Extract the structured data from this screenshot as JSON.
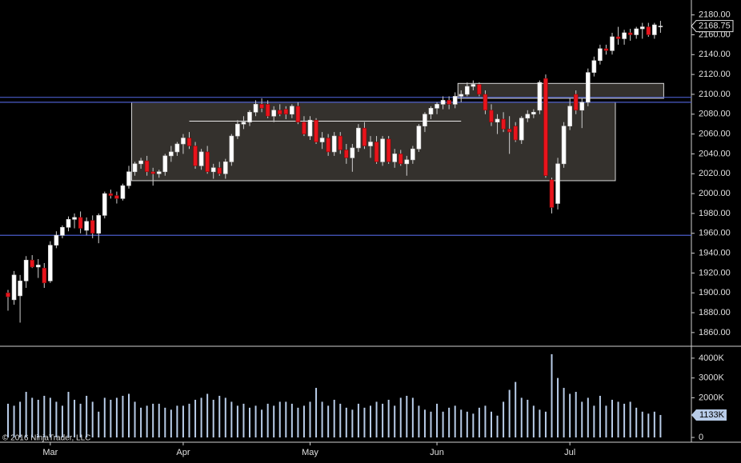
{
  "chart_data": {
    "type": "candlestick",
    "copyright": "© 2016 NinjaTrader, LLC",
    "categories": [
      null,
      null,
      null,
      null,
      null,
      null,
      null,
      "Mar",
      null,
      null,
      null,
      null,
      null,
      null,
      null,
      null,
      null,
      null,
      null,
      null,
      null,
      null,
      null,
      null,
      null,
      null,
      null,
      null,
      null,
      "Apr",
      null,
      null,
      null,
      null,
      null,
      null,
      null,
      null,
      null,
      null,
      null,
      null,
      null,
      null,
      null,
      null,
      null,
      null,
      null,
      null,
      "May",
      null,
      null,
      null,
      null,
      null,
      null,
      null,
      null,
      null,
      null,
      null,
      null,
      null,
      null,
      null,
      null,
      null,
      null,
      null,
      null,
      "Jun",
      null,
      null,
      null,
      null,
      null,
      null,
      null,
      null,
      null,
      null,
      null,
      null,
      null,
      null,
      null,
      null,
      null,
      null,
      null,
      null,
      null,
      "Jul",
      null,
      null,
      null,
      null,
      null,
      null,
      null,
      null,
      null,
      null,
      null,
      null,
      null,
      null,
      null
    ],
    "open": [
      1900,
      1893,
      1897,
      1912,
      1933,
      1926,
      1925,
      1912,
      1948,
      1958,
      1966,
      1974,
      1976,
      1963,
      1973,
      1960,
      1978,
      2000,
      1998,
      1995,
      2008,
      2022,
      2030,
      2033,
      2022,
      2020,
      2022,
      2038,
      2042,
      2050,
      2056,
      2048,
      2028,
      2042,
      2022,
      2026,
      2020,
      2032,
      2058,
      2070,
      2072,
      2082,
      2090,
      2090,
      2078,
      2084,
      2085,
      2080,
      2088,
      2072,
      2058,
      2074,
      2052,
      2056,
      2042,
      2058,
      2044,
      2036,
      2046,
      2066,
      2048,
      2052,
      2032,
      2055,
      2032,
      2040,
      2030,
      2034,
      2045,
      2068,
      2080,
      2086,
      2090,
      2094,
      2090,
      2098,
      2100,
      2108,
      2110,
      2100,
      2084,
      2072,
      2075,
      2065,
      2068,
      2054,
      2076,
      2080,
      2084,
      2116,
      2014,
      1990,
      2030,
      2068,
      2100,
      2084,
      2092,
      2122,
      2134,
      2146,
      2144,
      2158,
      2156,
      2162,
      2160,
      2166,
      2168,
      2160,
      2168
    ],
    "high": [
      1903,
      1922,
      1918,
      1937,
      1938,
      1934,
      1930,
      1952,
      1962,
      1968,
      1977,
      1980,
      1982,
      1976,
      1978,
      1980,
      2002,
      2004,
      2002,
      2010,
      2028,
      2032,
      2036,
      2038,
      2026,
      2024,
      2040,
      2048,
      2052,
      2060,
      2062,
      2052,
      2045,
      2048,
      2030,
      2032,
      2035,
      2060,
      2074,
      2078,
      2084,
      2094,
      2096,
      2094,
      2088,
      2090,
      2088,
      2090,
      2092,
      2078,
      2078,
      2076,
      2062,
      2060,
      2062,
      2062,
      2050,
      2050,
      2070,
      2072,
      2058,
      2058,
      2058,
      2058,
      2045,
      2044,
      2038,
      2048,
      2070,
      2082,
      2088,
      2092,
      2098,
      2098,
      2102,
      2104,
      2112,
      2114,
      2112,
      2104,
      2090,
      2080,
      2082,
      2078,
      2072,
      2078,
      2084,
      2085,
      2114,
      2120,
      2016,
      2036,
      2072,
      2096,
      2104,
      2096,
      2126,
      2138,
      2150,
      2150,
      2162,
      2168,
      2165,
      2166,
      2168,
      2172,
      2172,
      2172,
      2174
    ],
    "low": [
      1882,
      1888,
      1870,
      1905,
      1925,
      1915,
      1905,
      1910,
      1945,
      1955,
      1962,
      1965,
      1960,
      1958,
      1955,
      1950,
      1975,
      1995,
      1990,
      1993,
      2005,
      2018,
      2025,
      2018,
      2008,
      2016,
      2018,
      2032,
      2038,
      2040,
      2045,
      2025,
      2024,
      2020,
      2015,
      2018,
      2015,
      2028,
      2055,
      2065,
      2068,
      2078,
      2082,
      2076,
      2072,
      2078,
      2075,
      2076,
      2070,
      2058,
      2054,
      2050,
      2045,
      2038,
      2038,
      2040,
      2030,
      2022,
      2042,
      2045,
      2036,
      2030,
      2028,
      2030,
      2026,
      2028,
      2018,
      2030,
      2042,
      2062,
      2075,
      2080,
      2085,
      2085,
      2086,
      2092,
      2098,
      2104,
      2098,
      2080,
      2068,
      2060,
      2062,
      2040,
      2052,
      2050,
      2072,
      2076,
      2080,
      2016,
      1980,
      1984,
      2026,
      2064,
      2080,
      2066,
      2088,
      2118,
      2130,
      2140,
      2140,
      2150,
      2150,
      2154,
      2156,
      2156,
      2158,
      2156,
      2162
    ],
    "close": [
      1896,
      1918,
      1912,
      1933,
      1926,
      1928,
      1910,
      1948,
      1958,
      1966,
      1974,
      1976,
      1965,
      1972,
      1960,
      1978,
      2000,
      1998,
      1995,
      2008,
      2022,
      2030,
      2033,
      2022,
      2020,
      2022,
      2038,
      2042,
      2050,
      2056,
      2048,
      2028,
      2042,
      2022,
      2026,
      2020,
      2032,
      2058,
      2070,
      2072,
      2082,
      2090,
      2086,
      2078,
      2084,
      2080,
      2080,
      2088,
      2072,
      2060,
      2074,
      2052,
      2056,
      2042,
      2058,
      2044,
      2036,
      2046,
      2066,
      2048,
      2052,
      2032,
      2055,
      2032,
      2040,
      2030,
      2034,
      2045,
      2068,
      2080,
      2086,
      2090,
      2094,
      2090,
      2098,
      2100,
      2108,
      2110,
      2100,
      2084,
      2072,
      2075,
      2065,
      2062,
      2054,
      2076,
      2080,
      2082,
      2112,
      2018,
      1986,
      2030,
      2068,
      2088,
      2084,
      2092,
      2122,
      2134,
      2146,
      2144,
      2158,
      2156,
      2162,
      2160,
      2166,
      2168,
      2160,
      2170,
      2168.75
    ],
    "up_color": "#ffffff",
    "down_color": "#e8141c",
    "ylim": [
      1847,
      2191
    ],
    "yticks": [
      {
        "value": 1860,
        "label": "1860.00"
      },
      {
        "value": 1880,
        "label": "1880.00"
      },
      {
        "value": 1900,
        "label": "1900.00"
      },
      {
        "value": 1920,
        "label": "1920.00"
      },
      {
        "value": 1940,
        "label": "1940.00"
      },
      {
        "value": 1960,
        "label": "1960.00"
      },
      {
        "value": 1980,
        "label": "1980.00"
      },
      {
        "value": 2000,
        "label": "2000.00"
      },
      {
        "value": 2020,
        "label": "2020.00"
      },
      {
        "value": 2040,
        "label": "2040.00"
      },
      {
        "value": 2060,
        "label": "2060.00"
      },
      {
        "value": 2080,
        "label": "2080.00"
      },
      {
        "value": 2100,
        "label": "2100.00"
      },
      {
        "value": 2120,
        "label": "2120.00"
      },
      {
        "value": 2140,
        "label": "2140.00"
      },
      {
        "value": 2160,
        "label": "2160.00"
      },
      {
        "value": 2180,
        "label": "2180.00"
      }
    ],
    "hlines": [
      2097,
      2092,
      1958
    ],
    "hline_color": "#4a5cc8",
    "rectangles": [
      {
        "x": [
          21,
          100
        ],
        "y": [
          2013,
          2092
        ]
      },
      {
        "x": [
          75,
          108
        ],
        "y": [
          2096,
          2111
        ]
      }
    ],
    "segments": [
      {
        "x": [
          30,
          75
        ],
        "y": [
          2073,
          2073
        ]
      }
    ],
    "volume": {
      "color": "#b8cce8",
      "values": [
        1700,
        1600,
        1800,
        2300,
        2000,
        1900,
        2100,
        2000,
        1800,
        1600,
        2300,
        1900,
        1700,
        2100,
        1800,
        1300,
        2000,
        1900,
        2000,
        2100,
        2200,
        1800,
        1500,
        1600,
        1700,
        1700,
        1500,
        1400,
        1600,
        1600,
        1700,
        1900,
        2000,
        2200,
        1900,
        2100,
        2000,
        1800,
        1600,
        1700,
        1500,
        1600,
        1400,
        1700,
        1600,
        1800,
        1800,
        1700,
        1500,
        1600,
        1800,
        2500,
        1800,
        1600,
        1900,
        1700,
        1500,
        1400,
        1700,
        1500,
        1600,
        1800,
        1700,
        1900,
        1600,
        2000,
        2100,
        2000,
        1600,
        1400,
        1300,
        1700,
        1300,
        1500,
        1600,
        1400,
        1300,
        1200,
        1500,
        1600,
        1300,
        1100,
        1800,
        2400,
        2800,
        2000,
        1900,
        1600,
        1400,
        1300,
        4200,
        3000,
        2500,
        2200,
        2300,
        1800,
        2000,
        1600,
        2100,
        1600,
        1900,
        1800,
        1700,
        1800,
        1500,
        1300,
        1200,
        1300,
        1133
      ],
      "value_labels": [
        null,
        null,
        null,
        null,
        null,
        null,
        null,
        null,
        null,
        null,
        null,
        null,
        null,
        null,
        null,
        null,
        null,
        null,
        null,
        null,
        null,
        null,
        null,
        null,
        null,
        null,
        null,
        null,
        null,
        null,
        null,
        null,
        null,
        null,
        null,
        null,
        null,
        null,
        null,
        null,
        null,
        null,
        null,
        null,
        null,
        null,
        null,
        null,
        null,
        null,
        null,
        null,
        null,
        null,
        null,
        null,
        null,
        null,
        null,
        null,
        null,
        null,
        null,
        null,
        null,
        null,
        null,
        null,
        null,
        null,
        null,
        null,
        null,
        null,
        null,
        null,
        null,
        null,
        null,
        null,
        null,
        null,
        null,
        null,
        null,
        null,
        null,
        null,
        null,
        null,
        null,
        null,
        null,
        null,
        null,
        null,
        null,
        null,
        null,
        null,
        null,
        null,
        null,
        null,
        null,
        null,
        null,
        null,
        "1133K"
      ],
      "ylim": [
        -200,
        4560
      ],
      "yticks": [
        0,
        {
          "value": 2000,
          "label": "2000K"
        },
        {
          "value": 3000,
          "label": "3000K"
        },
        {
          "value": 4000,
          "label": "4000K"
        }
      ]
    }
  }
}
